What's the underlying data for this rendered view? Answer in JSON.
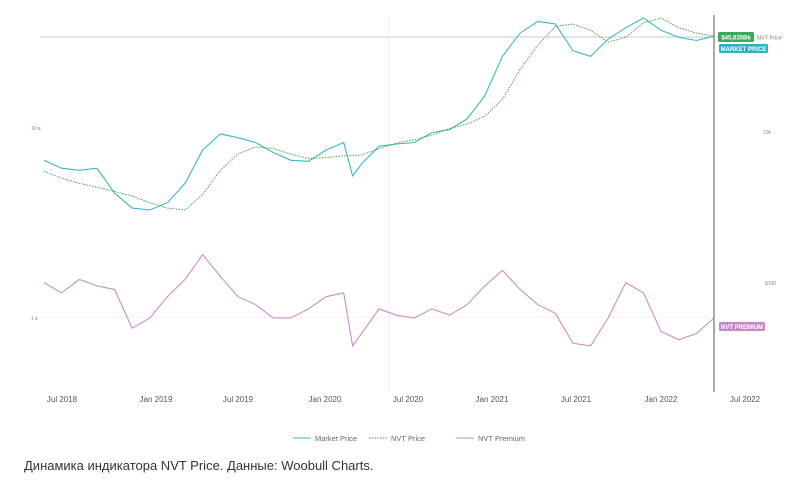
{
  "caption": "Динамика индикатора NVT Price. Данные: Woobull Charts.",
  "colors": {
    "market_price": "#3fb5c4",
    "nvt_price": "#4a9a4a",
    "nvt_premium": "#c78ec7",
    "price_tag": "#3aab5a",
    "market_tag": "#2bb3c0",
    "premium_tag": "#c888c8",
    "cursor_line": "#555555"
  },
  "chart_data": {
    "type": "line",
    "x_ticks": [
      "Jul 2018",
      "Jan 2019",
      "Jul 2019",
      "Jan 2020",
      "Jul 2020",
      "Jan 2021",
      "Jul 2021",
      "Jan 2022",
      "Jul 2022"
    ],
    "left_ticks": [
      "10 в",
      "1 в"
    ],
    "right_ticks": [
      "10k",
      "$100"
    ],
    "price_tag": "$45,835Bk",
    "price_tag_side": "NVT Price",
    "market_tag": "MARKET PRICE",
    "premium_tag": "NVT PREMIUM",
    "legend": [
      "Market Price",
      "NVT Price",
      "NVT Premium"
    ],
    "series": [
      {
        "name": "Market Price",
        "x": [
          2018.45,
          2018.55,
          2018.65,
          2018.75,
          2018.85,
          2018.95,
          2019.05,
          2019.15,
          2019.25,
          2019.35,
          2019.45,
          2019.55,
          2019.65,
          2019.75,
          2019.85,
          2019.95,
          2020.05,
          2020.15,
          2020.2,
          2020.25,
          2020.35,
          2020.45,
          2020.55,
          2020.65,
          2020.75,
          2020.85,
          2020.95,
          2021.05,
          2021.15,
          2021.25,
          2021.35,
          2021.45,
          2021.55,
          2021.65,
          2021.75,
          2021.85,
          2021.95,
          2022.05,
          2022.15,
          2022.25
        ],
        "values": [
          7300,
          6500,
          6300,
          6500,
          4500,
          3600,
          3500,
          3900,
          5200,
          8500,
          10800,
          10200,
          9500,
          8200,
          7300,
          7200,
          8500,
          9500,
          5800,
          6900,
          9000,
          9300,
          9500,
          11000,
          11500,
          13500,
          19000,
          34000,
          48000,
          57000,
          55000,
          37000,
          34000,
          44000,
          52000,
          60000,
          50000,
          45000,
          43000,
          45800
        ]
      },
      {
        "name": "NVT Price",
        "x": [
          2018.45,
          2018.55,
          2018.65,
          2018.75,
          2018.85,
          2018.95,
          2019.05,
          2019.15,
          2019.25,
          2019.35,
          2019.45,
          2019.55,
          2019.65,
          2019.75,
          2019.85,
          2019.95,
          2020.05,
          2020.15,
          2020.25,
          2020.35,
          2020.45,
          2020.55,
          2020.65,
          2020.75,
          2020.85,
          2020.95,
          2021.05,
          2021.15,
          2021.25,
          2021.35,
          2021.45,
          2021.55,
          2021.65,
          2021.75,
          2021.85,
          2021.95,
          2022.05,
          2022.15,
          2022.25
        ],
        "values": [
          6200,
          5600,
          5200,
          4900,
          4600,
          4300,
          3900,
          3600,
          3500,
          4400,
          6300,
          8000,
          8900,
          8700,
          8000,
          7500,
          7600,
          7800,
          7900,
          8700,
          9400,
          9900,
          10600,
          11700,
          12500,
          14000,
          18000,
          28000,
          40000,
          53000,
          55000,
          50000,
          42000,
          45000,
          56000,
          60000,
          52000,
          48000,
          45800
        ]
      },
      {
        "name": "NVT Premium",
        "x": [
          2018.45,
          2018.55,
          2018.65,
          2018.75,
          2018.85,
          2018.95,
          2019.05,
          2019.15,
          2019.25,
          2019.35,
          2019.45,
          2019.55,
          2019.65,
          2019.75,
          2019.85,
          2019.95,
          2020.05,
          2020.15,
          2020.2,
          2020.25,
          2020.35,
          2020.45,
          2020.55,
          2020.65,
          2020.75,
          2020.85,
          2020.95,
          2021.05,
          2021.15,
          2021.25,
          2021.35,
          2021.45,
          2021.55,
          2021.65,
          2021.75,
          2021.85,
          2021.95,
          2022.05,
          2022.15,
          2022.25
        ],
        "values": [
          1.4,
          1.25,
          1.45,
          1.35,
          1.3,
          0.85,
          0.95,
          1.2,
          1.45,
          1.9,
          1.5,
          1.2,
          1.1,
          0.95,
          0.95,
          1.05,
          1.2,
          1.25,
          0.7,
          0.8,
          1.05,
          0.98,
          0.95,
          1.05,
          0.98,
          1.1,
          1.35,
          1.6,
          1.3,
          1.1,
          1.0,
          0.72,
          0.7,
          0.95,
          1.4,
          1.25,
          0.82,
          0.75,
          0.8,
          0.95
        ]
      }
    ]
  }
}
